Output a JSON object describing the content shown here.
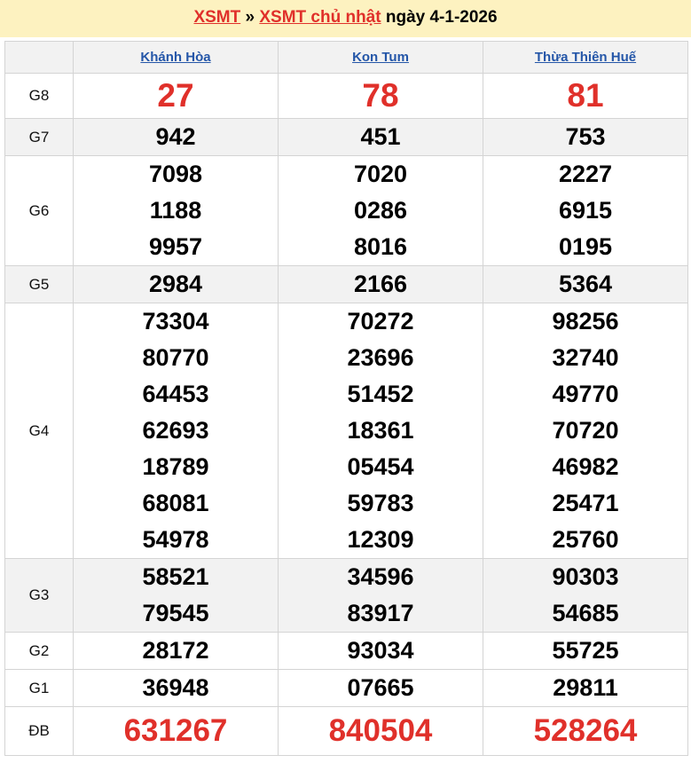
{
  "header": {
    "link1": "XSMT",
    "separator": " » ",
    "link2": "XSMT chủ nhật",
    "date_text": " ngày 4-1-2026"
  },
  "provinces": [
    "Khánh Hòa",
    "Kon Tum",
    "Thừa Thiên Huế"
  ],
  "prizes": [
    {
      "label": "G8",
      "style": "big",
      "values": [
        [
          "27"
        ],
        [
          "78"
        ],
        [
          "81"
        ]
      ]
    },
    {
      "label": "G7",
      "style": "alt",
      "values": [
        [
          "942"
        ],
        [
          "451"
        ],
        [
          "753"
        ]
      ]
    },
    {
      "label": "G6",
      "values": [
        [
          "7098",
          "1188",
          "9957"
        ],
        [
          "7020",
          "0286",
          "8016"
        ],
        [
          "2227",
          "6915",
          "0195"
        ]
      ]
    },
    {
      "label": "G5",
      "style": "alt",
      "values": [
        [
          "2984"
        ],
        [
          "2166"
        ],
        [
          "5364"
        ]
      ]
    },
    {
      "label": "G4",
      "values": [
        [
          "73304",
          "80770",
          "64453",
          "62693",
          "18789",
          "68081",
          "54978"
        ],
        [
          "70272",
          "23696",
          "51452",
          "18361",
          "05454",
          "59783",
          "12309"
        ],
        [
          "98256",
          "32740",
          "49770",
          "70720",
          "46982",
          "25471",
          "25760"
        ]
      ]
    },
    {
      "label": "G3",
      "style": "alt",
      "values": [
        [
          "58521",
          "79545"
        ],
        [
          "34596",
          "83917"
        ],
        [
          "90303",
          "54685"
        ]
      ]
    },
    {
      "label": "G2",
      "values": [
        [
          "28172"
        ],
        [
          "93034"
        ],
        [
          "55725"
        ]
      ]
    },
    {
      "label": "G1",
      "values": [
        [
          "36948"
        ],
        [
          "07665"
        ],
        [
          "29811"
        ]
      ]
    },
    {
      "label": "ĐB",
      "style": "db",
      "values": [
        [
          "631267"
        ],
        [
          "840504"
        ],
        [
          "528264"
        ]
      ]
    }
  ],
  "colors": {
    "accent": "#e0302a",
    "link": "#2456a8",
    "title_bg": "#fdf2c0"
  }
}
